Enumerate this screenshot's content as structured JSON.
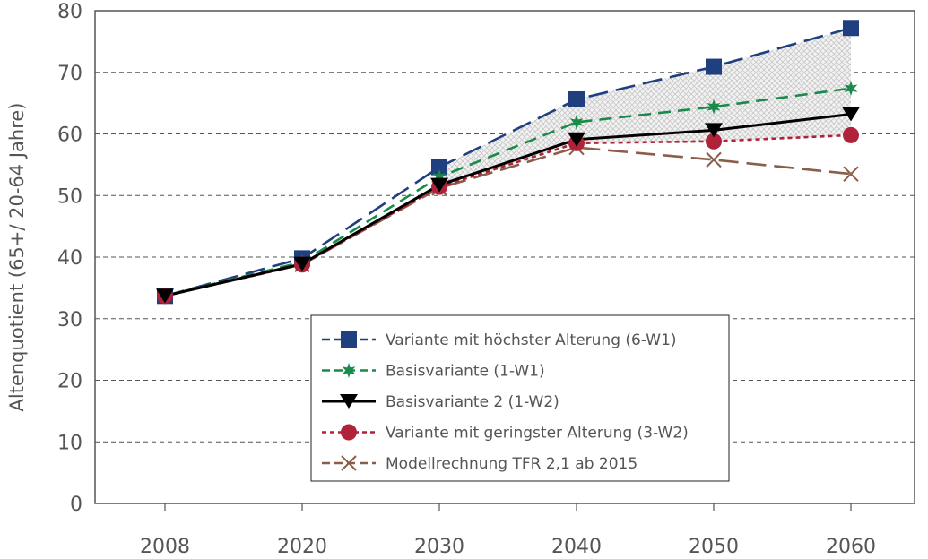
{
  "chart_data": {
    "type": "line",
    "title": "",
    "xlabel": "",
    "ylabel": "Altenquotient (65+/ 20-64 Jahre)",
    "categories": [
      "2008",
      "2020",
      "2030",
      "2040",
      "2050",
      "2060"
    ],
    "ylim": [
      0,
      80
    ],
    "yticks": [
      0,
      10,
      20,
      30,
      40,
      50,
      60,
      70,
      80
    ],
    "grid": "horizontal dashed",
    "legend_position": "bottom-center",
    "shaded_band": {
      "between": [
        "Variante mit höchster Alterung (6-W1)",
        "Variante mit geringster Alterung (3-W2)"
      ],
      "from_category": "2030"
    },
    "series": [
      {
        "name": "Variante mit höchster Alterung (6-W1)",
        "color": "#1f3f7f",
        "marker": "square",
        "dash": "long-dash",
        "values": [
          33.7,
          39.8,
          54.6,
          65.6,
          70.9,
          77.2
        ]
      },
      {
        "name": "Basisvariante (1-W1)",
        "color": "#1a8a4a",
        "marker": "star",
        "dash": "medium-dash",
        "values": [
          33.7,
          39.2,
          53.0,
          61.9,
          64.4,
          67.4
        ]
      },
      {
        "name": "Basisvariante 2 (1-W2)",
        "color": "#000000",
        "marker": "triangle-down",
        "dash": "solid",
        "values": [
          33.7,
          38.9,
          51.7,
          59.1,
          60.6,
          63.2
        ]
      },
      {
        "name": "Variante mit geringster Alterung (3-W2)",
        "color": "#b0223a",
        "marker": "circle",
        "dash": "dotted",
        "values": [
          33.7,
          38.8,
          51.4,
          58.5,
          58.8,
          59.8
        ]
      },
      {
        "name": "Modellrechnung TFR 2,1 ab 2015",
        "color": "#8b5e4a",
        "marker": "x",
        "dash": "long-dash",
        "values": [
          33.7,
          38.8,
          51.2,
          57.8,
          55.8,
          53.5
        ]
      }
    ]
  }
}
